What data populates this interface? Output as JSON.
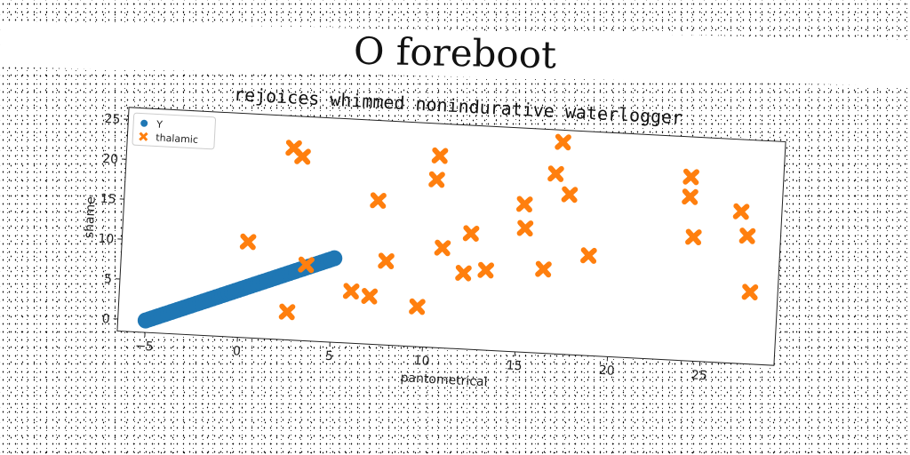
{
  "chart_data": {
    "type": "scatter",
    "suptitle": "O foreboot",
    "title": "rejoices whimmed nonindurative waterlogger",
    "xlabel": "pantometrical",
    "ylabel": "shame",
    "xlim": [
      -6.5,
      29
    ],
    "ylim": [
      -1.5,
      26.5
    ],
    "xticks": [
      -5,
      0,
      5,
      10,
      15,
      20,
      25
    ],
    "yticks": [
      0,
      5,
      10,
      15,
      20,
      25
    ],
    "legend_position": "upper-left",
    "grid": false,
    "series": [
      {
        "name": "Y",
        "marker": "circle",
        "color": "#1f77b4",
        "x_range": [
          -5,
          5
        ],
        "y_range": [
          0,
          9
        ],
        "points": 60
      },
      {
        "name": "thalamic",
        "marker": "x",
        "color": "#ff7f0e",
        "x": [
          0.3,
          2.5,
          3.0,
          3.5,
          2.6,
          6.0,
          7.0,
          7.2,
          7.8,
          9.6,
          10.3,
          10.4,
          10.8,
          12.0,
          12.3,
          13.2,
          15.1,
          15.2,
          16.3,
          16.7,
          17.0,
          17.5,
          18.7,
          24.0,
          24.0,
          24.3,
          26.8,
          27.2,
          27.5
        ],
        "y": [
          10.5,
          22.5,
          21.5,
          8.0,
          2.0,
          5.0,
          4.5,
          16.5,
          9.0,
          3.5,
          19.5,
          22.5,
          11.0,
          8.0,
          13.0,
          8.5,
          17.0,
          14.0,
          9.0,
          21.0,
          25.0,
          18.5,
          11.0,
          21.5,
          19.0,
          14.0,
          17.5,
          14.5,
          7.5
        ]
      }
    ]
  }
}
